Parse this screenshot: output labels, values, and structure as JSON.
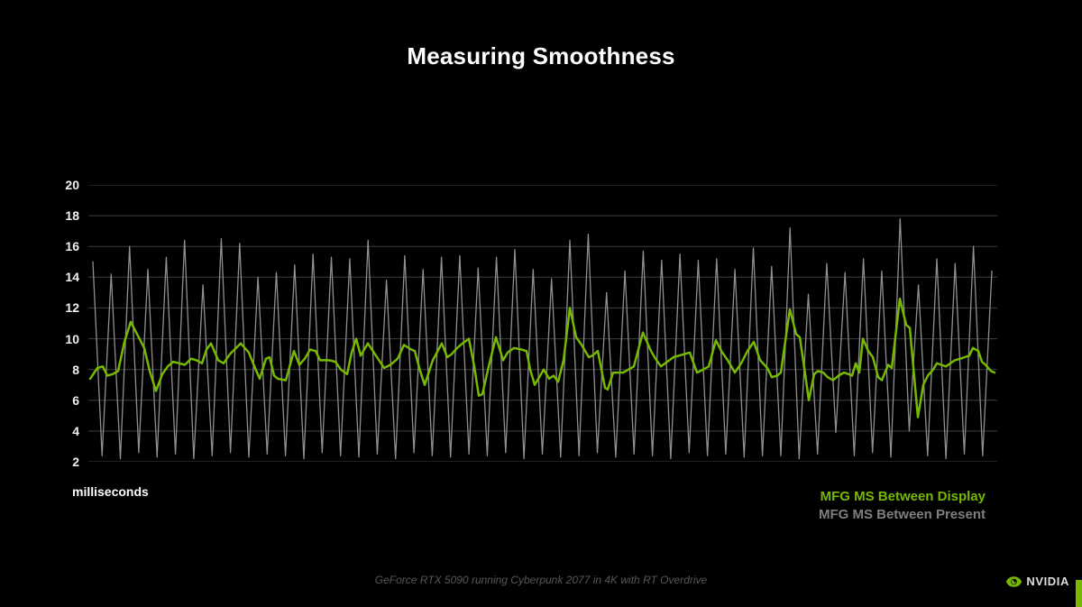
{
  "slide": {
    "title": "Measuring Smoothness",
    "footer": "GeForce RTX 5090 running Cyberpunk 2077 in 4K with RT Overdrive",
    "background_color": "#000000",
    "brand": {
      "logo_text": "NVIDIA",
      "accent_color": "#76b900"
    }
  },
  "chart_data": {
    "type": "line",
    "title": "Measuring Smoothness",
    "xlabel": "",
    "ylabel": "milliseconds",
    "ylim": [
      2,
      20
    ],
    "y_ticks": [
      2,
      4,
      6,
      8,
      10,
      12,
      14,
      16,
      18,
      20
    ],
    "x_axis_labels": "none (time / frame order, unlabeled)",
    "grid": "horizontal",
    "grid_color": "#3f3f3f",
    "legend_position": "bottom-right",
    "plot_width_units": 1008,
    "series": [
      {
        "name": "MFG MS Between Display",
        "color": "#76b900",
        "style": "smooth fluctuation ~7-10 ms with occasional spikes to ~12 and dips to ~5",
        "points": [
          [
            2,
            7.4
          ],
          [
            10,
            8.1
          ],
          [
            16,
            8.2
          ],
          [
            21,
            7.6
          ],
          [
            27,
            7.7
          ],
          [
            33,
            7.9
          ],
          [
            40,
            9.8
          ],
          [
            47,
            11.1
          ],
          [
            54,
            10.3
          ],
          [
            62,
            9.4
          ],
          [
            68,
            7.9
          ],
          [
            75,
            6.6
          ],
          [
            82,
            7.7
          ],
          [
            88,
            8.2
          ],
          [
            94,
            8.5
          ],
          [
            101,
            8.4
          ],
          [
            107,
            8.3
          ],
          [
            114,
            8.7
          ],
          [
            120,
            8.6
          ],
          [
            126,
            8.4
          ],
          [
            131,
            9.3
          ],
          [
            136,
            9.7
          ],
          [
            144,
            8.6
          ],
          [
            150,
            8.4
          ],
          [
            157,
            9.0
          ],
          [
            169,
            9.7
          ],
          [
            178,
            9.1
          ],
          [
            182,
            8.5
          ],
          [
            190,
            7.4
          ],
          [
            197,
            8.7
          ],
          [
            201,
            8.8
          ],
          [
            206,
            7.6
          ],
          [
            210,
            7.4
          ],
          [
            219,
            7.3
          ],
          [
            228,
            9.2
          ],
          [
            234,
            8.3
          ],
          [
            240,
            8.7
          ],
          [
            246,
            9.3
          ],
          [
            252,
            9.2
          ],
          [
            257,
            8.6
          ],
          [
            267,
            8.6
          ],
          [
            274,
            8.5
          ],
          [
            280,
            8.0
          ],
          [
            287,
            7.7
          ],
          [
            292,
            9.1
          ],
          [
            297,
            10.0
          ],
          [
            302,
            8.9
          ],
          [
            310,
            9.7
          ],
          [
            319,
            8.9
          ],
          [
            328,
            8.1
          ],
          [
            335,
            8.3
          ],
          [
            343,
            8.7
          ],
          [
            350,
            9.6
          ],
          [
            358,
            9.3
          ],
          [
            362,
            9.2
          ],
          [
            368,
            7.9
          ],
          [
            373,
            7.0
          ],
          [
            382,
            8.6
          ],
          [
            392,
            9.7
          ],
          [
            398,
            8.8
          ],
          [
            403,
            9.0
          ],
          [
            409,
            9.4
          ],
          [
            415,
            9.7
          ],
          [
            422,
            10.0
          ],
          [
            428,
            8.2
          ],
          [
            433,
            6.3
          ],
          [
            437,
            6.4
          ],
          [
            444,
            8.2
          ],
          [
            452,
            10.1
          ],
          [
            460,
            8.6
          ],
          [
            465,
            9.1
          ],
          [
            472,
            9.4
          ],
          [
            480,
            9.3
          ],
          [
            486,
            9.2
          ],
          [
            490,
            8.0
          ],
          [
            495,
            7.0
          ],
          [
            500,
            7.5
          ],
          [
            505,
            8.0
          ],
          [
            511,
            7.4
          ],
          [
            516,
            7.6
          ],
          [
            521,
            7.2
          ],
          [
            527,
            8.6
          ],
          [
            534,
            12.0
          ],
          [
            541,
            10.1
          ],
          [
            547,
            9.6
          ],
          [
            555,
            8.8
          ],
          [
            559,
            8.9
          ],
          [
            565,
            9.2
          ],
          [
            573,
            6.8
          ],
          [
            576,
            6.7
          ],
          [
            582,
            7.8
          ],
          [
            588,
            7.8
          ],
          [
            593,
            7.8
          ],
          [
            599,
            8.0
          ],
          [
            605,
            8.2
          ],
          [
            615,
            10.4
          ],
          [
            624,
            9.2
          ],
          [
            629,
            8.7
          ],
          [
            635,
            8.2
          ],
          [
            642,
            8.5
          ],
          [
            649,
            8.8
          ],
          [
            655,
            8.9
          ],
          [
            661,
            9.0
          ],
          [
            667,
            9.1
          ],
          [
            675,
            7.8
          ],
          [
            682,
            8.0
          ],
          [
            688,
            8.2
          ],
          [
            696,
            9.9
          ],
          [
            702,
            9.2
          ],
          [
            709,
            8.6
          ],
          [
            717,
            7.8
          ],
          [
            724,
            8.4
          ],
          [
            731,
            9.2
          ],
          [
            738,
            9.8
          ],
          [
            745,
            8.6
          ],
          [
            753,
            8.1
          ],
          [
            758,
            7.5
          ],
          [
            764,
            7.6
          ],
          [
            768,
            7.8
          ],
          [
            778,
            11.9
          ],
          [
            785,
            10.3
          ],
          [
            789,
            10.1
          ],
          [
            795,
            7.7
          ],
          [
            799,
            6.0
          ],
          [
            805,
            7.7
          ],
          [
            809,
            7.9
          ],
          [
            815,
            7.8
          ],
          [
            820,
            7.5
          ],
          [
            826,
            7.3
          ],
          [
            832,
            7.6
          ],
          [
            838,
            7.8
          ],
          [
            843,
            7.7
          ],
          [
            847,
            7.6
          ],
          [
            851,
            8.4
          ],
          [
            855,
            7.8
          ],
          [
            859,
            10.0
          ],
          [
            865,
            9.2
          ],
          [
            870,
            8.8
          ],
          [
            876,
            7.5
          ],
          [
            880,
            7.3
          ],
          [
            887,
            8.3
          ],
          [
            891,
            8.1
          ],
          [
            900,
            12.6
          ],
          [
            907,
            10.9
          ],
          [
            911,
            10.7
          ],
          [
            920,
            4.9
          ],
          [
            926,
            7.0
          ],
          [
            931,
            7.6
          ],
          [
            937,
            8.0
          ],
          [
            941,
            8.4
          ],
          [
            946,
            8.3
          ],
          [
            951,
            8.2
          ],
          [
            956,
            8.4
          ],
          [
            961,
            8.6
          ],
          [
            967,
            8.7
          ],
          [
            972,
            8.8
          ],
          [
            977,
            8.9
          ],
          [
            981,
            9.4
          ],
          [
            987,
            9.2
          ],
          [
            991,
            8.5
          ],
          [
            995,
            8.3
          ],
          [
            1001,
            7.9
          ],
          [
            1005,
            7.8
          ]
        ]
      },
      {
        "name": "MFG MS Between Present",
        "color": "#8f8f8f",
        "style": "sawtooth alternating between ~13-18 ms peaks and ~2-4 ms troughs",
        "points": [
          [
            5,
            15.0
          ],
          [
            15.2,
            2.4
          ],
          [
            25.3,
            14.2
          ],
          [
            35.5,
            2.2
          ],
          [
            45.7,
            16.0
          ],
          [
            55.9,
            2.6
          ],
          [
            66,
            14.5
          ],
          [
            76.2,
            2.3
          ],
          [
            86.4,
            15.3
          ],
          [
            96.6,
            2.5
          ],
          [
            106.7,
            16.4
          ],
          [
            116.9,
            2.2
          ],
          [
            127.1,
            13.5
          ],
          [
            137.3,
            2.4
          ],
          [
            147.4,
            16.5
          ],
          [
            157.6,
            2.6
          ],
          [
            167.8,
            16.2
          ],
          [
            178,
            2.3
          ],
          [
            188.1,
            14.0
          ],
          [
            198.3,
            2.5
          ],
          [
            208.5,
            14.3
          ],
          [
            218.6,
            2.4
          ],
          [
            228.8,
            14.8
          ],
          [
            239,
            2.2
          ],
          [
            249.2,
            15.5
          ],
          [
            259.3,
            2.6
          ],
          [
            269.5,
            15.3
          ],
          [
            279.7,
            2.4
          ],
          [
            289.9,
            15.2
          ],
          [
            300,
            2.3
          ],
          [
            310.2,
            16.4
          ],
          [
            320.4,
            2.5
          ],
          [
            330.6,
            13.8
          ],
          [
            340.7,
            2.2
          ],
          [
            350.9,
            15.4
          ],
          [
            361.1,
            2.6
          ],
          [
            371.2,
            14.5
          ],
          [
            381.4,
            2.4
          ],
          [
            391.6,
            15.3
          ],
          [
            401.7,
            2.3
          ],
          [
            411.9,
            15.4
          ],
          [
            422.1,
            2.5
          ],
          [
            432.3,
            14.6
          ],
          [
            442.4,
            2.4
          ],
          [
            452.6,
            15.3
          ],
          [
            462.8,
            2.6
          ],
          [
            473,
            15.8
          ],
          [
            483.1,
            2.2
          ],
          [
            493.3,
            14.5
          ],
          [
            503.5,
            2.5
          ],
          [
            513.7,
            13.9
          ],
          [
            523.8,
            2.3
          ],
          [
            534,
            16.4
          ],
          [
            544.2,
            2.4
          ],
          [
            554.4,
            16.8
          ],
          [
            564.5,
            2.6
          ],
          [
            574.7,
            13.0
          ],
          [
            584.9,
            2.3
          ],
          [
            595.1,
            14.4
          ],
          [
            605.2,
            2.5
          ],
          [
            615.4,
            15.7
          ],
          [
            625.6,
            2.4
          ],
          [
            635.8,
            15.1
          ],
          [
            645.9,
            2.2
          ],
          [
            656.1,
            15.5
          ],
          [
            666.3,
            2.6
          ],
          [
            676.4,
            15.1
          ],
          [
            686.6,
            2.4
          ],
          [
            696.8,
            15.2
          ],
          [
            706.9,
            2.5
          ],
          [
            717.1,
            14.5
          ],
          [
            727.3,
            2.3
          ],
          [
            737.5,
            15.9
          ],
          [
            747.6,
            2.4
          ],
          [
            757.8,
            14.7
          ],
          [
            768,
            2.4
          ],
          [
            778.2,
            17.2
          ],
          [
            788.3,
            2.2
          ],
          [
            798.5,
            12.9
          ],
          [
            808.7,
            2.5
          ],
          [
            818.9,
            14.9
          ],
          [
            829,
            3.9
          ],
          [
            839.2,
            14.3
          ],
          [
            849.4,
            2.4
          ],
          [
            859.6,
            15.2
          ],
          [
            869.7,
            2.6
          ],
          [
            879.9,
            14.4
          ],
          [
            890.1,
            2.3
          ],
          [
            900.3,
            17.8
          ],
          [
            910.4,
            4.0
          ],
          [
            920.6,
            13.5
          ],
          [
            930.8,
            2.4
          ],
          [
            941,
            15.2
          ],
          [
            951.1,
            2.2
          ],
          [
            961.3,
            14.9
          ],
          [
            971.5,
            2.5
          ],
          [
            981.6,
            16.0
          ],
          [
            991.8,
            2.4
          ],
          [
            1002,
            14.4
          ]
        ]
      }
    ]
  }
}
